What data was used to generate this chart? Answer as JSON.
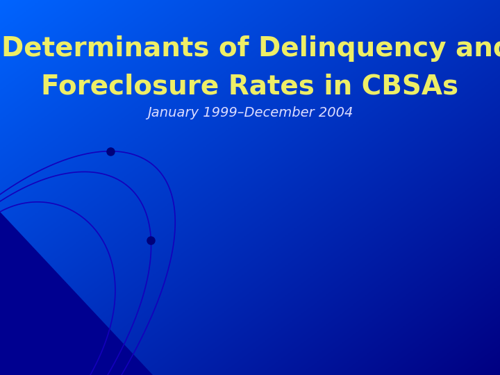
{
  "title_line1": "Determinants of Delinquency and",
  "title_line2": "Foreclosure Rates in CBSAs",
  "subtitle": "January 1999–December 2004",
  "title_color": "#EEEE66",
  "subtitle_color": "#DDDDFF",
  "title_fontsize": 28,
  "subtitle_fontsize": 14,
  "fig_width": 7.2,
  "fig_height": 5.4,
  "dpi": 100,
  "bg_topleft": [
    0,
    100,
    255
  ],
  "bg_bottomright": [
    0,
    0,
    130
  ],
  "triangle_color": "#0000AA",
  "curve_color": "#1400BB",
  "dot_color": "#00007A"
}
